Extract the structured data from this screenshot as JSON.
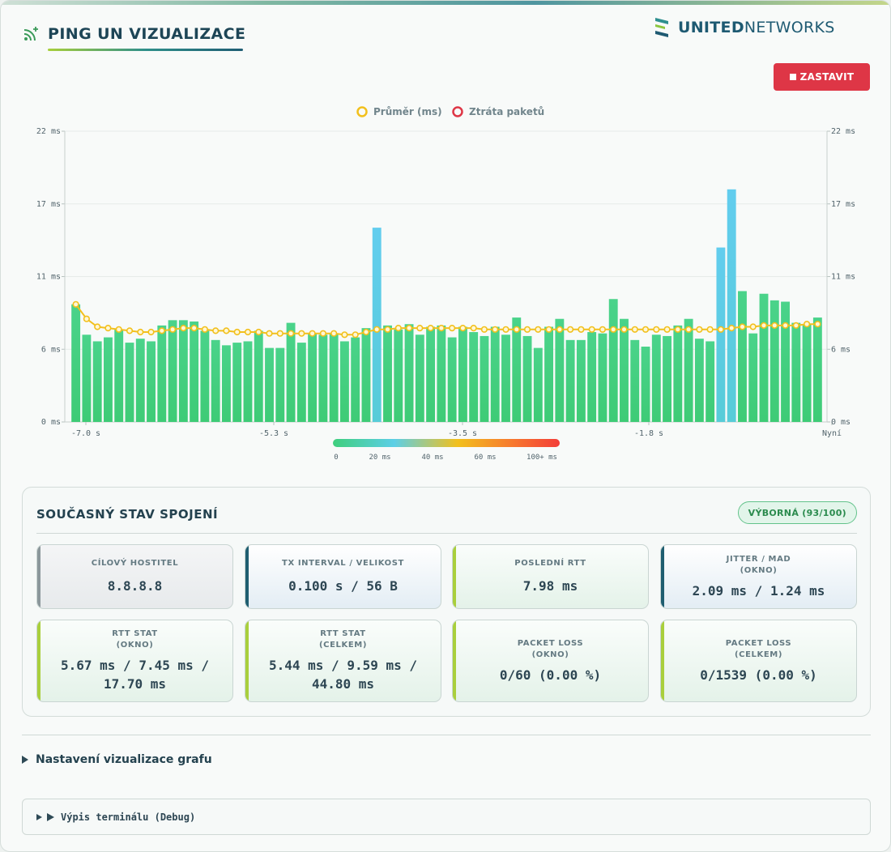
{
  "header": {
    "title": "PING UN VIZUALIZACE",
    "icon": "wifi-signal-icon"
  },
  "logo": {
    "bold": "UNITED",
    "light": "NETWORKS"
  },
  "stop_button": {
    "label": "ZASTAVIT",
    "icon": "stop-square-icon",
    "color": "#de3646"
  },
  "chart_data": {
    "type": "bar",
    "title": "",
    "legend": {
      "placement": "top-center",
      "items": [
        "Průměr (ms)",
        "Ztráta paketů"
      ]
    },
    "y_ticks": [
      "22 ms",
      "17 ms",
      "11 ms",
      "6 ms",
      "0 ms"
    ],
    "ylim": [
      0,
      22
    ],
    "x_ticks": [
      "-7.0 s",
      "-5.3 s",
      "-3.5 s",
      "-1.8 s",
      "Nyní"
    ],
    "grid": true,
    "series": [
      {
        "name": "",
        "values": [
          8.9,
          6.6,
          6.1,
          6.4,
          7.0,
          6.0,
          6.3,
          6.1,
          7.3,
          7.7,
          7.7,
          7.6,
          6.9,
          6.2,
          5.8,
          6.0,
          6.1,
          6.9,
          5.6,
          5.6,
          7.5,
          6.0,
          6.7,
          6.6,
          6.7,
          6.1,
          6.4,
          7.1,
          14.7,
          7.3,
          7.0,
          7.4,
          6.6,
          7.2,
          7.3,
          6.4,
          7.2,
          6.8,
          6.5,
          7.2,
          6.6,
          7.9,
          6.5,
          5.6,
          7.2,
          7.8,
          6.2,
          6.2,
          6.8,
          6.7,
          9.3,
          7.8,
          6.2,
          5.7,
          6.6,
          6.5,
          7.3,
          7.8,
          6.3,
          6.1,
          13.2,
          17.6,
          9.9,
          6.7,
          9.7,
          9.2,
          9.1,
          7.5,
          7.4,
          7.9
        ],
        "colors_by_value": true
      },
      {
        "name": "Průměr (ms)",
        "line": true,
        "color": "#f2c01d",
        "values": [
          8.9,
          7.8,
          7.2,
          7.1,
          7.0,
          6.9,
          6.8,
          6.8,
          6.9,
          7.0,
          7.1,
          7.1,
          7.0,
          6.9,
          6.9,
          6.8,
          6.8,
          6.8,
          6.7,
          6.7,
          6.7,
          6.7,
          6.7,
          6.7,
          6.7,
          6.6,
          6.6,
          6.8,
          7.0,
          7.0,
          7.1,
          7.1,
          7.1,
          7.1,
          7.1,
          7.1,
          7.1,
          7.1,
          7.0,
          7.0,
          7.0,
          7.0,
          7.0,
          7.0,
          7.0,
          7.0,
          7.0,
          7.0,
          7.0,
          7.0,
          7.0,
          7.0,
          7.0,
          7.0,
          7.0,
          7.0,
          7.0,
          7.0,
          7.0,
          7.0,
          7.0,
          7.1,
          7.2,
          7.2,
          7.3,
          7.3,
          7.3,
          7.3,
          7.4,
          7.4
        ]
      },
      {
        "name": "Ztráta paketů",
        "color": "#de3646",
        "values": []
      }
    ],
    "colorbar": {
      "labels": [
        "0",
        "20 ms",
        "40 ms",
        "60 ms",
        "100+ ms"
      ],
      "colors": [
        "#3fcf7d",
        "#5ccfe6",
        "#f2c01d",
        "#f7762f",
        "#f33d38"
      ]
    }
  },
  "status": {
    "title": "SOUČASNÝ STAV SPOJENÍ",
    "quality": "VÝBORNÁ (93/100)",
    "tiles": [
      {
        "label": "CÍLOVÝ HOSTITEL",
        "sub": "",
        "value": "8.8.8.8",
        "value2": ""
      },
      {
        "label": "TX INTERVAL / VELIKOST",
        "sub": "",
        "value": "0.100 s / 56 B",
        "value2": ""
      },
      {
        "label": "POSLEDNÍ RTT",
        "sub": "",
        "value": "7.98 ms",
        "value2": ""
      },
      {
        "label": "JITTER / MAD",
        "sub": "(OKNO)",
        "value": "2.09 ms / 1.24 ms",
        "value2": ""
      },
      {
        "label": "RTT STAT",
        "sub": "(OKNO)",
        "value": "5.67 ms / 7.45 ms /",
        "value2": "17.70 ms"
      },
      {
        "label": "RTT STAT",
        "sub": "(CELKEM)",
        "value": "5.44 ms / 9.59 ms /",
        "value2": "44.80 ms"
      },
      {
        "label": "PACKET LOSS",
        "sub": "(OKNO)",
        "value": "0/60 (0.00 %)",
        "value2": ""
      },
      {
        "label": "PACKET LOSS",
        "sub": "(CELKEM)",
        "value": "0/1539 (0.00 %)",
        "value2": ""
      }
    ]
  },
  "settings_section": {
    "label": "Nastavení vizualizace grafu"
  },
  "terminal_section": {
    "label": "Výpis terminálu (Debug)"
  }
}
